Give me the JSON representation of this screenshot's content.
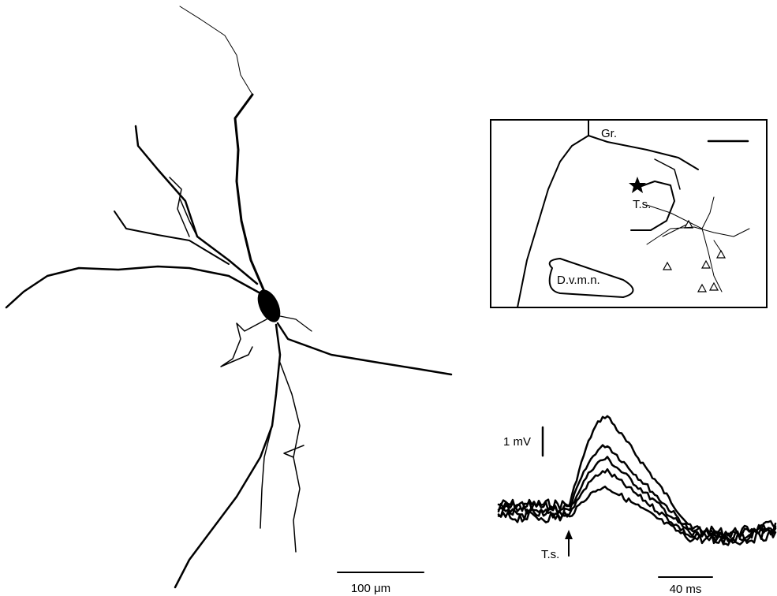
{
  "inset": {
    "region_gr": "Gr.",
    "region_ts": "T.s.",
    "region_dvmn": "D.v.m.n."
  },
  "recording": {
    "amplitude_scale": "1 mV",
    "stimulus_label": "T.s.",
    "time_scale": "40 ms"
  },
  "neuron": {
    "length_scale": "100 μm"
  }
}
